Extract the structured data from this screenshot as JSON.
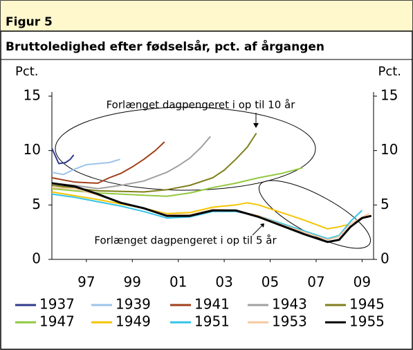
{
  "chart_data": {
    "type": "line",
    "figure_label": "Figur 5",
    "title": "Bruttoledighed efter fødselsår, pct. af årgangen",
    "ylabel": "Pct.",
    "y2label": "Pct.",
    "annotations": [
      "Forlænget dagpengeret i op til 10 år",
      "Forlænget dagpengeret i op til 5 år"
    ],
    "xlim": [
      1996,
      2010
    ],
    "xticks": [
      {
        "value": 1997.5,
        "label": "97"
      },
      {
        "value": 1999.5,
        "label": "99"
      },
      {
        "value": 2001.5,
        "label": "01"
      },
      {
        "value": 2003.5,
        "label": "03"
      },
      {
        "value": 2005.5,
        "label": "05"
      },
      {
        "value": 2007.5,
        "label": "07"
      },
      {
        "value": 2009.5,
        "label": "09"
      }
    ],
    "ylim": [
      0,
      15
    ],
    "yticks": [
      0,
      5,
      10,
      15
    ],
    "y2lim": [
      0,
      15
    ],
    "y2ticks": [
      0,
      5,
      10,
      15
    ],
    "series": [
      {
        "name": "1937",
        "color": "#2e3a8c",
        "x": [
          1996,
          1996.3,
          1996.6,
          1996.8,
          1996.95
        ],
        "values": [
          10.2,
          8.8,
          8.9,
          9.2,
          9.6
        ]
      },
      {
        "name": "1939",
        "color": "#9cc3ea",
        "x": [
          1996,
          1996.5,
          1997,
          1997.5,
          1998,
          1998.5,
          1998.97
        ],
        "values": [
          8.0,
          7.8,
          8.3,
          8.7,
          8.8,
          8.9,
          9.2
        ]
      },
      {
        "name": "1941",
        "color": "#a0401a",
        "x": [
          1996,
          1997,
          1998,
          1998.5,
          1999,
          1999.5,
          2000,
          2000.5,
          2000.9
        ],
        "values": [
          7.5,
          7.1,
          7.0,
          7.5,
          7.9,
          8.5,
          9.2,
          10.0,
          10.8
        ]
      },
      {
        "name": "1943",
        "color": "#a0a0a0",
        "x": [
          1996,
          1997,
          1998,
          1999,
          2000,
          2001,
          2001.5,
          2002,
          2002.5,
          2002.9
        ],
        "values": [
          7.0,
          6.8,
          6.5,
          6.8,
          7.2,
          8.0,
          8.6,
          9.3,
          10.3,
          11.3
        ]
      },
      {
        "name": "1945",
        "color": "#7f7f1a",
        "x": [
          1996,
          1998,
          2000,
          2001,
          2002,
          2003,
          2003.5,
          2004,
          2004.5,
          2004.9
        ],
        "values": [
          6.8,
          6.3,
          6.2,
          6.4,
          6.8,
          7.5,
          8.2,
          9.2,
          10.3,
          11.6
        ]
      },
      {
        "name": "1947",
        "color": "#92c83e",
        "x": [
          1996,
          1998,
          2000,
          2001,
          2002,
          2003,
          2004,
          2005,
          2006,
          2006.9
        ],
        "values": [
          6.5,
          6.1,
          5.9,
          5.8,
          6.1,
          6.6,
          7.0,
          7.5,
          7.9,
          8.4
        ]
      },
      {
        "name": "1949",
        "color": "#f5c400",
        "x": [
          1996,
          1998,
          2000,
          2001,
          2002,
          2003,
          2004,
          2004.5,
          2005,
          2006,
          2007,
          2008,
          2008.5,
          2008.9
        ],
        "values": [
          6.2,
          5.5,
          4.7,
          4.2,
          4.3,
          4.8,
          5.0,
          5.2,
          5.0,
          4.3,
          3.6,
          2.8,
          3.0,
          3.2
        ]
      },
      {
        "name": "1951",
        "color": "#33c3e8",
        "x": [
          1996,
          1997,
          1998,
          1999,
          2000,
          2001,
          2002,
          2003,
          2004,
          2005,
          2006,
          2007,
          2008,
          2008.5,
          2009,
          2009.5
        ],
        "values": [
          6.0,
          5.7,
          5.3,
          4.9,
          4.4,
          3.8,
          3.9,
          4.4,
          4.4,
          4.0,
          3.3,
          2.6,
          1.9,
          2.2,
          3.5,
          4.5
        ]
      },
      {
        "name": "1953",
        "color": "#f6c9a0",
        "x": [
          1996,
          1997,
          1998,
          1999,
          2000,
          2001,
          2002,
          2003,
          2004,
          2005,
          2006,
          2007,
          2008,
          2008.5,
          2009,
          2009.8
        ],
        "values": [
          6.6,
          6.5,
          5.9,
          5.2,
          4.7,
          4.1,
          4.1,
          4.6,
          4.5,
          4.0,
          3.2,
          2.5,
          1.8,
          2.1,
          3.3,
          4.2
        ]
      },
      {
        "name": "1955",
        "color": "#000000",
        "x": [
          1996,
          1997,
          1998,
          1999,
          2000,
          2001,
          2002,
          2003,
          2004,
          2005,
          2006,
          2007,
          2008,
          2008.5,
          2009,
          2009.5,
          2009.9
        ],
        "values": [
          7.0,
          6.7,
          6.0,
          5.2,
          4.7,
          4.0,
          4.0,
          4.5,
          4.5,
          3.9,
          3.1,
          2.3,
          1.6,
          1.8,
          3.0,
          3.8,
          4.0
        ]
      }
    ]
  }
}
